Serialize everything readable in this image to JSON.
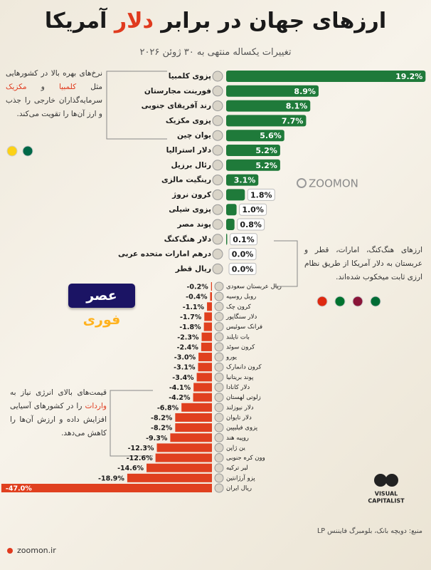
{
  "chart_data": {
    "type": "bar",
    "title": [
      {
        "text": "ارزهای جهان در برابر",
        "color": "#1a1a1a"
      },
      {
        "text": "دلار",
        "color": "#e03a1e"
      },
      {
        "text": "آمریکا",
        "color": "#1a1a1a"
      }
    ],
    "subtitle": "تغییرات یکساله منتهی به ۳۰ ژوئن ۲۰۲۶",
    "categories": [
      "پزوی کلمبیا",
      "فورینت مجارستان",
      "رند آفریقای جنوبی",
      "پزوی مکزیک",
      "یوان چین",
      "دلار استرالیا",
      "رئال برزیل",
      "رینگیت مالزی",
      "کرون نروژ",
      "پزوی شیلی",
      "پوند مصر",
      "دلار هنگ‌کنگ",
      "درهم امارات متحده عربی",
      "ریال قطر",
      "ریال عربستان سعودی",
      "روبل روسیه",
      "کرون چک",
      "دلار سنگاپور",
      "فرانک سوئیس",
      "بات تایلند",
      "کرون سوئد",
      "یورو",
      "کرون دانمارک",
      "پوند بریتانیا",
      "دلار کانادا",
      "زلوتی لهستان",
      "دلار نیوزلند",
      "دلار تایوان",
      "پزوی فیلیپین",
      "روپیه هند",
      "ین ژاپن",
      "وون کره جنوبی",
      "لیر ترکیه",
      "پزو آرژانتین",
      "ریال ایران"
    ],
    "values": [
      19.2,
      8.9,
      8.1,
      7.7,
      5.6,
      5.2,
      5.2,
      3.1,
      1.8,
      1.0,
      0.8,
      0.1,
      0.0,
      0.0,
      -0.2,
      -0.4,
      -1.1,
      -1.7,
      -1.8,
      -2.3,
      -2.4,
      -3.0,
      -3.1,
      -3.4,
      -4.1,
      -4.2,
      -6.8,
      -8.2,
      -8.2,
      -9.3,
      -12.3,
      -12.6,
      -14.6,
      -18.9,
      -47.0
    ],
    "value_labels": [
      "19.2%",
      "8.9%",
      "8.1%",
      "7.7%",
      "5.6%",
      "5.2%",
      "5.2%",
      "3.1%",
      "1.8%",
      "1.0%",
      "0.8%",
      "0.1%",
      "0.0%",
      "0.0%",
      "-0.2%",
      "-0.4%",
      "-1.1%",
      "-1.7%",
      "-1.8%",
      "-2.3%",
      "-2.4%",
      "-3.0%",
      "-3.1%",
      "-3.4%",
      "-4.1%",
      "-4.2%",
      "-6.8%",
      "-8.2%",
      "-8.2%",
      "-9.3%",
      "-12.3%",
      "-12.6%",
      "-14.6%",
      "-18.9%",
      "-47.0%"
    ],
    "positive_color": "#1f7a3a",
    "negative_color": "#e0401f"
  },
  "annotations": [
    {
      "segments": [
        {
          "text": "نرخ‌های بهره بالا در کشورهایی مثل ",
          "color": "#333333"
        },
        {
          "text": "کلمبیا",
          "color": "#e03a1e"
        },
        {
          "text": " و ",
          "color": "#333333"
        },
        {
          "text": "مکزیک",
          "color": "#e03a1e"
        },
        {
          "text": " سرمایه‌گذاران خارجی را جذب و ارز آن‌ها را تقویت می‌کند.",
          "color": "#333333"
        }
      ]
    },
    {
      "segments": [
        {
          "text": "ارزهای هنگ‌کنگ، امارات، قطر و عربستان به دلار آمریکا از طریق نظام ارزی ثابت میخکوب شده‌اند.",
          "color": "#333333"
        }
      ]
    },
    {
      "segments": [
        {
          "text": "قیمت‌های بالای انرژی نیاز به ",
          "color": "#333333"
        },
        {
          "text": "واردات",
          "color": "#e03a1e"
        },
        {
          "text": " را در کشورهای آسیایی افزایش داده و ارزش آن‌ها را کاهش می‌دهد.",
          "color": "#333333"
        }
      ]
    }
  ],
  "badge": [
    {
      "text": "عصر",
      "color": "#ffffff"
    },
    {
      "text": "فوری",
      "color": "#ffb21e"
    }
  ],
  "watermark": "ZOOMON",
  "logo": [
    "VISUAL",
    "CAPITALIST"
  ],
  "source": "منبع: دویچه بانک، بلومبرگ فایننس LP",
  "footer": "zoomon.ir"
}
